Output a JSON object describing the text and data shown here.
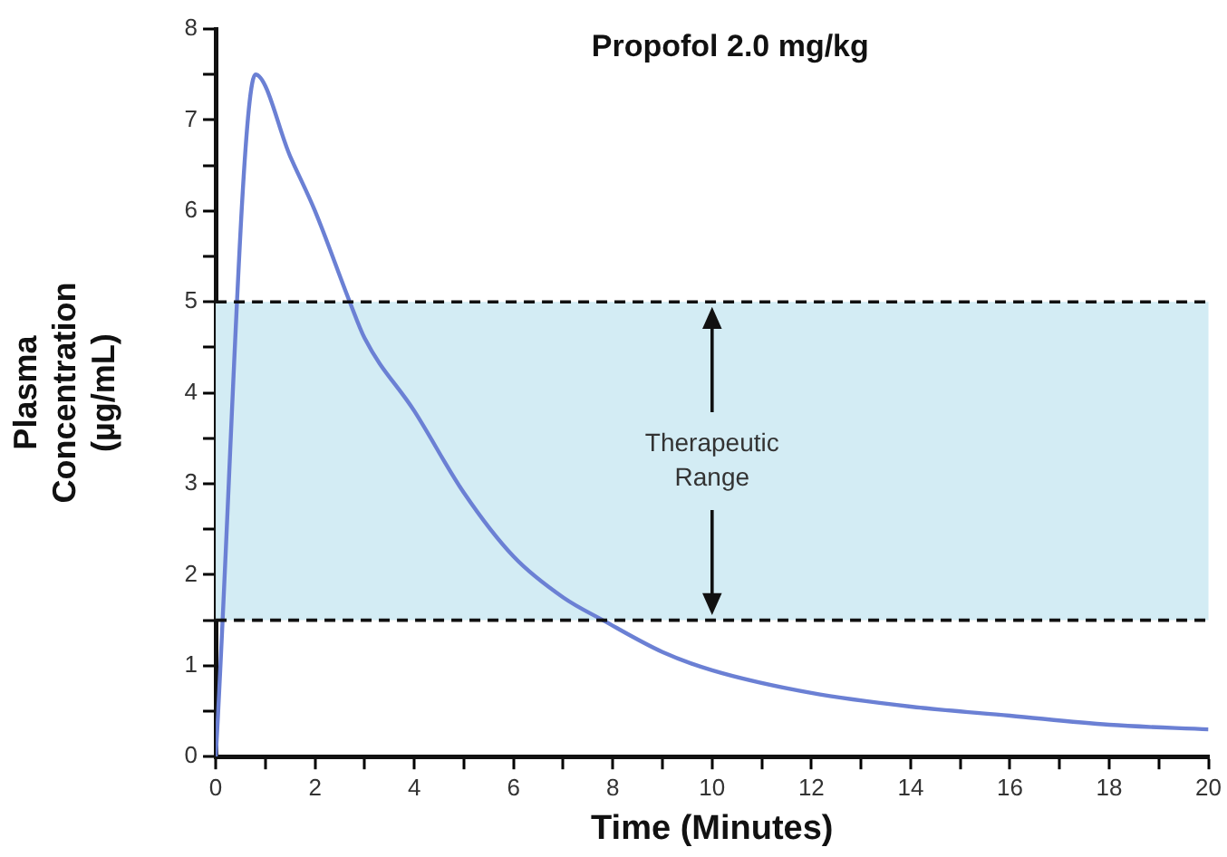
{
  "chart_data": {
    "type": "line",
    "title": "Propofol 2.0 mg/kg",
    "xlabel": "Time (Minutes)",
    "ylabel": "Plasma Concentration (µg/mL)",
    "x": [
      0,
      0.8,
      1.5,
      2,
      2.7,
      3,
      4,
      5,
      6,
      7,
      7.8,
      9,
      10,
      12,
      14,
      16,
      18,
      20
    ],
    "series": [
      {
        "color": "#6b80d4",
        "values": [
          0,
          7.5,
          6.6,
          6.0,
          5.0,
          4.6,
          3.8,
          2.9,
          2.2,
          1.75,
          1.5,
          1.15,
          0.95,
          0.7,
          0.55,
          0.45,
          0.35,
          0.3
        ]
      }
    ],
    "xlim": [
      0,
      20
    ],
    "xticks": [
      0,
      {
        "value": 1,
        "label": null
      },
      2,
      {
        "value": 3,
        "label": null
      },
      4,
      {
        "value": 5,
        "label": null
      },
      6,
      {
        "value": 7,
        "label": null
      },
      8,
      {
        "value": 9,
        "label": null
      },
      10,
      {
        "value": 11,
        "label": null
      },
      12,
      {
        "value": 13,
        "label": null
      },
      14,
      {
        "value": 15,
        "label": null
      },
      16,
      {
        "value": 17,
        "label": null
      },
      18,
      {
        "value": 19,
        "label": null
      },
      20
    ],
    "ylim": [
      0,
      8
    ],
    "yticks": [
      0,
      {
        "value": 0.5,
        "label": null
      },
      1,
      {
        "value": 1.5,
        "label": null
      },
      2,
      {
        "value": 2.5,
        "label": null
      },
      3,
      {
        "value": 3.5,
        "label": null
      },
      4,
      {
        "value": 4.5,
        "label": null
      },
      5,
      {
        "value": 5.5,
        "label": null
      },
      6,
      {
        "value": 6.5,
        "label": null
      },
      7,
      {
        "value": 7.5,
        "label": null
      },
      8
    ],
    "bands": [
      {
        "axis": "y",
        "from": 1.5,
        "to": 5,
        "label": "Therapeutic Range",
        "color": "#d3ecf4"
      }
    ],
    "ref_lines": [
      {
        "axis": "y",
        "value": 5,
        "color": "#111111",
        "line_style": "dashed"
      },
      {
        "axis": "y",
        "value": 1.5,
        "color": "#111111",
        "line_style": "dashed"
      }
    ],
    "grid": false,
    "legend": false,
    "marker": "none",
    "line_style": "solid"
  }
}
